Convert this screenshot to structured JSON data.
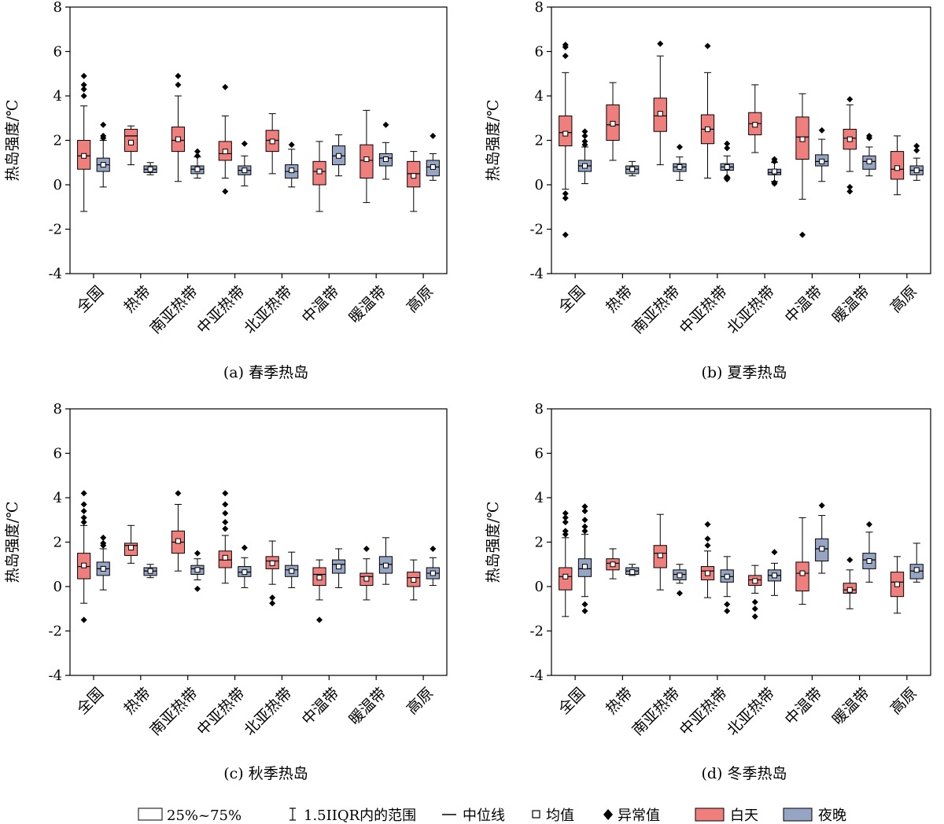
{
  "colors": {
    "day": "#ef7f7d",
    "night": "#95a5c3",
    "line": "#000000"
  },
  "legend": {
    "items": [
      {
        "key": "box",
        "label": "25%~75%"
      },
      {
        "key": "whisker",
        "label": "1.5IIQR内的范围"
      },
      {
        "key": "median",
        "label": "中位线"
      },
      {
        "key": "mean",
        "label": "均值"
      },
      {
        "key": "outlier",
        "label": "异常值"
      },
      {
        "key": "day",
        "label": "白天"
      },
      {
        "key": "night",
        "label": "夜晚"
      }
    ]
  },
  "chart_data": [
    {
      "type": "box",
      "caption": "(a) 春季热岛",
      "ylabel": "热岛强度/℃",
      "ylim": [
        -4,
        8
      ],
      "yticks": [
        -4,
        -2,
        0,
        2,
        4,
        6,
        8
      ],
      "categories": [
        "全国",
        "热带",
        "南亚热带",
        "中亚热带",
        "北亚热带",
        "中温带",
        "暖温带",
        "高原"
      ],
      "series": [
        {
          "name": "白天",
          "boxes": [
            {
              "min": -1.2,
              "q1": 0.7,
              "median": 1.3,
              "q3": 2.0,
              "max": 3.55,
              "mean": 1.3,
              "outliers": [
                4.0,
                4.3,
                4.5,
                4.9
              ]
            },
            {
              "min": 0.9,
              "q1": 1.5,
              "median": 2.2,
              "q3": 2.5,
              "max": 2.65,
              "mean": 1.9,
              "outliers": []
            },
            {
              "min": 0.15,
              "q1": 1.5,
              "median": 2.0,
              "q3": 2.6,
              "max": 4.0,
              "mean": 2.05,
              "outliers": [
                4.5,
                4.9
              ]
            },
            {
              "min": 0.3,
              "q1": 1.1,
              "median": 1.4,
              "q3": 1.95,
              "max": 3.1,
              "mean": 1.5,
              "outliers": [
                -0.3,
                4.4
              ]
            },
            {
              "min": 0.5,
              "q1": 1.5,
              "median": 2.0,
              "q3": 2.45,
              "max": 3.2,
              "mean": 1.95,
              "outliers": []
            },
            {
              "min": -1.2,
              "q1": 0.0,
              "median": 0.6,
              "q3": 1.05,
              "max": 1.95,
              "mean": 0.6,
              "outliers": []
            },
            {
              "min": -0.8,
              "q1": 0.3,
              "median": 1.1,
              "q3": 1.8,
              "max": 3.35,
              "mean": 1.15,
              "outliers": []
            },
            {
              "min": -1.2,
              "q1": -0.1,
              "median": 0.5,
              "q3": 1.05,
              "max": 1.5,
              "mean": 0.4,
              "outliers": []
            }
          ]
        },
        {
          "name": "夜晚",
          "boxes": [
            {
              "min": -0.1,
              "q1": 0.6,
              "median": 0.9,
              "q3": 1.2,
              "max": 2.0,
              "mean": 0.9,
              "outliers": [
                2.1,
                2.2,
                2.7
              ]
            },
            {
              "min": 0.45,
              "q1": 0.55,
              "median": 0.7,
              "q3": 0.85,
              "max": 1.0,
              "mean": 0.7,
              "outliers": []
            },
            {
              "min": 0.3,
              "q1": 0.5,
              "median": 0.7,
              "q3": 0.85,
              "max": 1.25,
              "mean": 0.7,
              "outliers": [
                1.3,
                1.5
              ]
            },
            {
              "min": -0.05,
              "q1": 0.45,
              "median": 0.65,
              "q3": 0.85,
              "max": 1.3,
              "mean": 0.65,
              "outliers": [
                1.85
              ]
            },
            {
              "min": -0.1,
              "q1": 0.3,
              "median": 0.6,
              "q3": 0.9,
              "max": 1.6,
              "mean": 0.65,
              "outliers": [
                1.8
              ]
            },
            {
              "min": 0.4,
              "q1": 0.9,
              "median": 1.3,
              "q3": 1.75,
              "max": 2.25,
              "mean": 1.3,
              "outliers": []
            },
            {
              "min": 0.25,
              "q1": 0.85,
              "median": 1.2,
              "q3": 1.4,
              "max": 1.9,
              "mean": 1.15,
              "outliers": [
                2.7
              ]
            },
            {
              "min": 0.2,
              "q1": 0.4,
              "median": 0.8,
              "q3": 1.1,
              "max": 1.4,
              "mean": 0.8,
              "outliers": [
                2.2
              ]
            }
          ]
        }
      ]
    },
    {
      "type": "box",
      "caption": "(b) 夏季热岛",
      "ylabel": "热岛强度/℃",
      "ylim": [
        -4,
        8
      ],
      "yticks": [
        -4,
        -2,
        0,
        2,
        4,
        6,
        8
      ],
      "categories": [
        "全国",
        "热带",
        "南亚热带",
        "中亚热带",
        "北亚热带",
        "中温带",
        "暖温带",
        "高原"
      ],
      "series": [
        {
          "name": "白天",
          "boxes": [
            {
              "min": -0.2,
              "q1": 1.75,
              "median": 2.35,
              "q3": 3.1,
              "max": 5.05,
              "mean": 2.3,
              "outliers": [
                -2.25,
                -0.6,
                -0.4,
                5.8,
                6.2,
                6.3
              ]
            },
            {
              "min": 1.1,
              "q1": 2.0,
              "median": 2.7,
              "q3": 3.6,
              "max": 4.6,
              "mean": 2.75,
              "outliers": []
            },
            {
              "min": 0.9,
              "q1": 2.4,
              "median": 3.1,
              "q3": 3.9,
              "max": 5.8,
              "mean": 3.2,
              "outliers": [
                6.35
              ]
            },
            {
              "min": 0.3,
              "q1": 1.85,
              "median": 2.5,
              "q3": 3.15,
              "max": 5.05,
              "mean": 2.5,
              "outliers": [
                6.25
              ]
            },
            {
              "min": 1.45,
              "q1": 2.25,
              "median": 2.75,
              "q3": 3.25,
              "max": 4.5,
              "mean": 2.7,
              "outliers": []
            },
            {
              "min": -0.65,
              "q1": 1.15,
              "median": 2.15,
              "q3": 3.05,
              "max": 4.1,
              "mean": 2.05,
              "outliers": [
                -2.25
              ]
            },
            {
              "min": 0.6,
              "q1": 1.6,
              "median": 2.1,
              "q3": 2.5,
              "max": 3.6,
              "mean": 2.05,
              "outliers": [
                -0.3,
                -0.1,
                3.85
              ]
            },
            {
              "min": -0.45,
              "q1": 0.25,
              "median": 0.7,
              "q3": 1.5,
              "max": 2.2,
              "mean": 0.75,
              "outliers": []
            }
          ]
        },
        {
          "name": "夜晚",
          "boxes": [
            {
              "min": 0.05,
              "q1": 0.6,
              "median": 0.85,
              "q3": 1.1,
              "max": 1.7,
              "mean": 0.85,
              "outliers": [
                1.8,
                1.95,
                2.2,
                2.4
              ]
            },
            {
              "min": 0.4,
              "q1": 0.5,
              "median": 0.7,
              "q3": 0.85,
              "max": 1.05,
              "mean": 0.7,
              "outliers": []
            },
            {
              "min": 0.2,
              "q1": 0.6,
              "median": 0.8,
              "q3": 0.95,
              "max": 1.25,
              "mean": 0.8,
              "outliers": [
                1.7
              ]
            },
            {
              "min": 0.3,
              "q1": 0.65,
              "median": 0.8,
              "q3": 0.95,
              "max": 1.3,
              "mean": 0.8,
              "outliers": [
                0.25,
                0.35,
                1.65,
                1.85
              ]
            },
            {
              "min": 0.15,
              "q1": 0.45,
              "median": 0.55,
              "q3": 0.7,
              "max": 1.0,
              "mean": 0.6,
              "outliers": [
                0.05,
                0.1,
                1.05,
                1.15
              ]
            },
            {
              "min": 0.15,
              "q1": 0.85,
              "median": 1.05,
              "q3": 1.35,
              "max": 2.05,
              "mean": 1.05,
              "outliers": [
                2.45
              ]
            },
            {
              "min": 0.4,
              "q1": 0.7,
              "median": 1.05,
              "q3": 1.3,
              "max": 1.7,
              "mean": 1.05,
              "outliers": [
                2.1,
                2.2
              ]
            },
            {
              "min": 0.2,
              "q1": 0.45,
              "median": 0.65,
              "q3": 0.85,
              "max": 1.2,
              "mean": 0.65,
              "outliers": [
                1.55,
                1.75
              ]
            }
          ]
        }
      ]
    },
    {
      "type": "box",
      "caption": "(c) 秋季热岛",
      "ylabel": "热岛强度/℃",
      "ylim": [
        -4,
        8
      ],
      "yticks": [
        -4,
        -2,
        0,
        2,
        4,
        6,
        8
      ],
      "categories": [
        "全国",
        "热带",
        "南亚热带",
        "中亚热带",
        "北亚热带",
        "中温带",
        "暖温带",
        "高原"
      ],
      "series": [
        {
          "name": "白天",
          "boxes": [
            {
              "min": -0.75,
              "q1": 0.35,
              "median": 0.9,
              "q3": 1.5,
              "max": 2.75,
              "mean": 0.95,
              "outliers": [
                -1.5,
                2.9,
                3.1,
                3.4,
                3.7,
                4.2
              ]
            },
            {
              "min": 1.05,
              "q1": 1.4,
              "median": 1.85,
              "q3": 1.95,
              "max": 2.75,
              "mean": 1.75,
              "outliers": []
            },
            {
              "min": 0.7,
              "q1": 1.5,
              "median": 2.0,
              "q3": 2.5,
              "max": 3.7,
              "mean": 2.05,
              "outliers": [
                4.2
              ]
            },
            {
              "min": 0.15,
              "q1": 0.85,
              "median": 1.2,
              "q3": 1.6,
              "max": 2.3,
              "mean": 1.3,
              "outliers": [
                2.6,
                2.9,
                3.3,
                3.7,
                4.2
              ]
            },
            {
              "min": 0.1,
              "q1": 0.8,
              "median": 1.15,
              "q3": 1.35,
              "max": 2.05,
              "mean": 1.05,
              "outliers": [
                -0.75,
                -0.5
              ]
            },
            {
              "min": -0.6,
              "q1": 0.05,
              "median": 0.55,
              "q3": 0.85,
              "max": 1.2,
              "mean": 0.4,
              "outliers": [
                -1.5
              ]
            },
            {
              "min": -0.6,
              "q1": 0.05,
              "median": 0.45,
              "q3": 0.6,
              "max": 1.25,
              "mean": 0.35,
              "outliers": [
                1.7
              ]
            },
            {
              "min": -0.6,
              "q1": 0.0,
              "median": 0.4,
              "q3": 0.65,
              "max": 1.2,
              "mean": 0.3,
              "outliers": []
            }
          ]
        },
        {
          "name": "夜晚",
          "boxes": [
            {
              "min": -0.15,
              "q1": 0.5,
              "median": 0.8,
              "q3": 1.1,
              "max": 1.7,
              "mean": 0.8,
              "outliers": [
                1.85,
                1.95,
                2.2
              ]
            },
            {
              "min": 0.4,
              "q1": 0.5,
              "median": 0.7,
              "q3": 0.85,
              "max": 1.0,
              "mean": 0.7,
              "outliers": []
            },
            {
              "min": 0.3,
              "q1": 0.55,
              "median": 0.8,
              "q3": 0.95,
              "max": 1.25,
              "mean": 0.75,
              "outliers": [
                -0.1,
                1.5
              ]
            },
            {
              "min": -0.05,
              "q1": 0.45,
              "median": 0.65,
              "q3": 0.9,
              "max": 1.3,
              "mean": 0.65,
              "outliers": [
                1.75
              ]
            },
            {
              "min": -0.05,
              "q1": 0.45,
              "median": 0.75,
              "q3": 0.95,
              "max": 1.55,
              "mean": 0.7,
              "outliers": []
            },
            {
              "min": -0.05,
              "q1": 0.6,
              "median": 1.0,
              "q3": 1.2,
              "max": 1.7,
              "mean": 0.9,
              "outliers": []
            },
            {
              "min": 0.1,
              "q1": 0.6,
              "median": 1.0,
              "q3": 1.35,
              "max": 2.2,
              "mean": 0.95,
              "outliers": []
            },
            {
              "min": 0.05,
              "q1": 0.35,
              "median": 0.6,
              "q3": 0.85,
              "max": 1.3,
              "mean": 0.6,
              "outliers": [
                1.7
              ]
            }
          ]
        }
      ]
    },
    {
      "type": "box",
      "caption": "(d) 冬季热岛",
      "ylabel": "热岛强度/℃",
      "ylim": [
        -4,
        8
      ],
      "yticks": [
        -4,
        -2,
        0,
        2,
        4,
        6,
        8
      ],
      "categories": [
        "全国",
        "热带",
        "南亚热带",
        "中亚热带",
        "北亚热带",
        "中温带",
        "暖温带",
        "高原"
      ],
      "series": [
        {
          "name": "白天",
          "boxes": [
            {
              "min": -1.35,
              "q1": -0.15,
              "median": 0.45,
              "q3": 0.85,
              "max": 2.2,
              "mean": 0.45,
              "outliers": [
                2.35,
                2.5,
                2.9,
                3.1,
                3.3
              ]
            },
            {
              "min": 0.35,
              "q1": 0.75,
              "median": 1.05,
              "q3": 1.25,
              "max": 1.7,
              "mean": 1.0,
              "outliers": []
            },
            {
              "min": -0.15,
              "q1": 0.85,
              "median": 1.5,
              "q3": 1.85,
              "max": 3.25,
              "mean": 1.4,
              "outliers": []
            },
            {
              "min": -0.5,
              "q1": 0.3,
              "median": 0.7,
              "q3": 0.9,
              "max": 1.6,
              "mean": 0.6,
              "outliers": [
                1.85,
                2.15,
                2.8
              ]
            },
            {
              "min": -0.3,
              "q1": 0.05,
              "median": 0.3,
              "q3": 0.5,
              "max": 0.95,
              "mean": 0.25,
              "outliers": [
                -1.35,
                -1.0,
                -0.7
              ]
            },
            {
              "min": -0.8,
              "q1": -0.2,
              "median": 0.6,
              "q3": 1.1,
              "max": 3.1,
              "mean": 0.6,
              "outliers": []
            },
            {
              "min": -1.0,
              "q1": -0.3,
              "median": -0.15,
              "q3": 0.15,
              "max": 0.75,
              "mean": -0.15,
              "outliers": [
                1.2
              ]
            },
            {
              "min": -1.2,
              "q1": -0.45,
              "median": 0.2,
              "q3": 0.65,
              "max": 1.35,
              "mean": 0.1,
              "outliers": []
            }
          ]
        },
        {
          "name": "夜晚",
          "boxes": [
            {
              "min": -0.45,
              "q1": 0.45,
              "median": 0.8,
              "q3": 1.25,
              "max": 2.35,
              "mean": 0.9,
              "outliers": [
                -1.1,
                -0.8,
                2.5,
                2.7,
                3.0,
                3.4,
                3.6
              ]
            },
            {
              "min": 0.5,
              "q1": 0.55,
              "median": 0.7,
              "q3": 0.85,
              "max": 1.0,
              "mean": 0.65,
              "outliers": []
            },
            {
              "min": 0.15,
              "q1": 0.3,
              "median": 0.55,
              "q3": 0.75,
              "max": 1.0,
              "mean": 0.5,
              "outliers": [
                -0.3
              ]
            },
            {
              "min": -0.45,
              "q1": 0.2,
              "median": 0.45,
              "q3": 0.75,
              "max": 1.35,
              "mean": 0.45,
              "outliers": [
                -1.1,
                -0.8
              ]
            },
            {
              "min": -0.4,
              "q1": 0.25,
              "median": 0.5,
              "q3": 0.75,
              "max": 1.05,
              "mean": 0.5,
              "outliers": [
                1.55
              ]
            },
            {
              "min": 0.6,
              "q1": 1.15,
              "median": 1.7,
              "q3": 2.15,
              "max": 3.2,
              "mean": 1.7,
              "outliers": [
                3.65
              ]
            },
            {
              "min": 0.2,
              "q1": 0.8,
              "median": 1.2,
              "q3": 1.5,
              "max": 2.45,
              "mean": 1.15,
              "outliers": [
                2.8
              ]
            },
            {
              "min": 0.2,
              "q1": 0.35,
              "median": 0.7,
              "q3": 1.0,
              "max": 1.95,
              "mean": 0.75,
              "outliers": []
            }
          ]
        }
      ]
    }
  ]
}
